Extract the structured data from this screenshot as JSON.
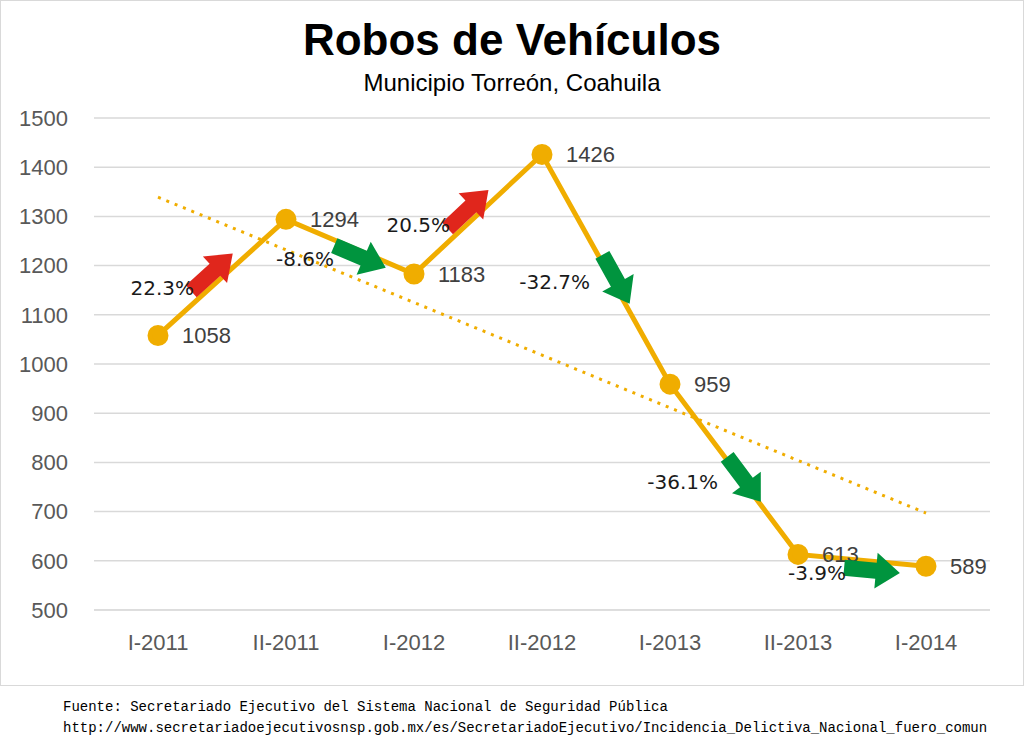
{
  "chart_data": {
    "type": "line",
    "title": "Robos de Vehículos",
    "subtitle": "Municipio Torreón, Coahuila",
    "categories": [
      "I-2011",
      "II-2011",
      "I-2012",
      "II-2012",
      "I-2013",
      "II-2013",
      "I-2014"
    ],
    "values": [
      1058,
      1294,
      1183,
      1426,
      959,
      613,
      589
    ],
    "color": "#f0ad00",
    "marker": "circle",
    "data_labels": true,
    "ylim": [
      500,
      1500
    ],
    "yticks": [
      500,
      600,
      700,
      800,
      900,
      1000,
      1100,
      1200,
      1300,
      1400,
      1500
    ],
    "grid": true,
    "trend": {
      "values": [
        1339,
        1232,
        1125,
        1018,
        911,
        804,
        697
      ],
      "color": "#f0ad00",
      "line_style": "dotted"
    },
    "annotations": [
      {
        "text": "22.3%",
        "color": "#e0261c"
      },
      {
        "text": "-8.6%",
        "color": "#00943e"
      },
      {
        "text": "20.5%",
        "color": "#e0261c"
      },
      {
        "text": "-32.7%",
        "color": "#00943e"
      },
      {
        "text": "-36.1%",
        "color": "#00943e"
      },
      {
        "text": "-3.9%",
        "color": "#00943e"
      }
    ],
    "source": [
      "Fuente: Secretariado Ejecutivo del Sistema Nacional de Seguridad Pública",
      "http://www.secretariadoejecutivosnsp.gob.mx/es/SecretariadoEjecutivo/Incidencia_Delictiva_Nacional_fuero_comun"
    ]
  }
}
